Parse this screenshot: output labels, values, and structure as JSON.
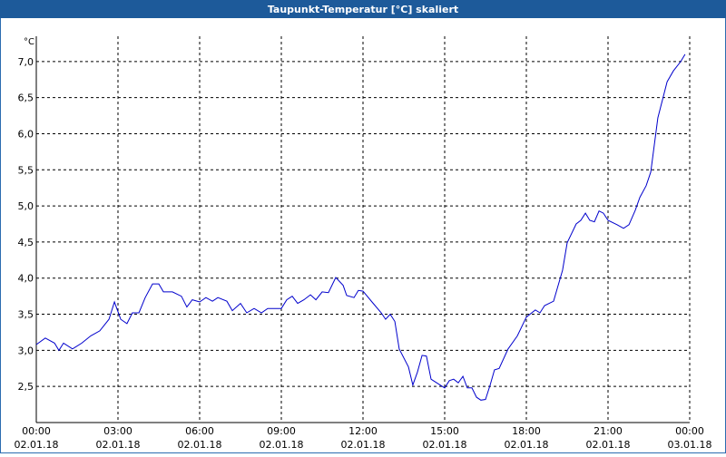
{
  "chart_data": {
    "type": "line",
    "title": "Taupunkt-Temperatur [°C] skaliert",
    "y_unit": "°C",
    "x": [
      0,
      0.33,
      0.67,
      0.83,
      1,
      1.33,
      1.67,
      2,
      2.33,
      2.67,
      2.87,
      3.1,
      3.33,
      3.53,
      3.77,
      4,
      4.27,
      4.5,
      4.67,
      5,
      5.33,
      5.53,
      5.73,
      6,
      6.23,
      6.47,
      6.67,
      7,
      7.2,
      7.5,
      7.73,
      8,
      8.27,
      8.5,
      9,
      9.2,
      9.4,
      9.6,
      9.83,
      10.07,
      10.27,
      10.5,
      10.73,
      11,
      11.27,
      11.4,
      11.67,
      11.83,
      12,
      12.33,
      12.67,
      12.83,
      13,
      13.17,
      13.33,
      13.67,
      13.83,
      14,
      14.17,
      14.33,
      14.5,
      14.83,
      15,
      15.17,
      15.33,
      15.5,
      15.67,
      15.83,
      16,
      16.17,
      16.33,
      16.5,
      16.67,
      16.83,
      17,
      17.33,
      17.67,
      18,
      18.33,
      18.5,
      18.67,
      19,
      19.33,
      19.5,
      19.83,
      20,
      20.17,
      20.33,
      20.5,
      20.67,
      20.83,
      21,
      21.33,
      21.57,
      21.77,
      22,
      22.17,
      22.4,
      22.57,
      22.83,
      23.17,
      23.4,
      23.67,
      23.83
    ],
    "series": [
      {
        "name": "Taupunkt-Temperatur",
        "color": "#0000cc",
        "values": [
          3.08,
          3.17,
          3.1,
          3.0,
          3.1,
          3.02,
          3.1,
          3.2,
          3.27,
          3.43,
          3.67,
          3.43,
          3.37,
          3.52,
          3.52,
          3.73,
          3.92,
          3.92,
          3.81,
          3.81,
          3.75,
          3.6,
          3.7,
          3.67,
          3.73,
          3.68,
          3.73,
          3.68,
          3.55,
          3.65,
          3.52,
          3.58,
          3.52,
          3.58,
          3.58,
          3.7,
          3.75,
          3.65,
          3.7,
          3.77,
          3.7,
          3.81,
          3.8,
          4.01,
          3.9,
          3.76,
          3.73,
          3.83,
          3.82,
          3.67,
          3.52,
          3.43,
          3.5,
          3.4,
          3.02,
          2.77,
          2.52,
          2.7,
          2.93,
          2.92,
          2.6,
          2.52,
          2.48,
          2.58,
          2.6,
          2.55,
          2.64,
          2.48,
          2.48,
          2.35,
          2.31,
          2.32,
          2.52,
          2.73,
          2.75,
          3.02,
          3.2,
          3.46,
          3.56,
          3.52,
          3.62,
          3.68,
          4.11,
          4.49,
          4.75,
          4.8,
          4.9,
          4.8,
          4.78,
          4.93,
          4.9,
          4.8,
          4.74,
          4.69,
          4.74,
          4.94,
          5.12,
          5.28,
          5.47,
          6.22,
          6.72,
          6.87,
          7.0,
          7.1
        ]
      }
    ],
    "xlim": [
      0,
      24
    ],
    "xticks": [
      {
        "value": 0,
        "label": "00:00"
      },
      {
        "value": 3,
        "label": "03:00"
      },
      {
        "value": 6,
        "label": "06:00"
      },
      {
        "value": 9,
        "label": "09:00"
      },
      {
        "value": 12,
        "label": "12:00"
      },
      {
        "value": 15,
        "label": "15:00"
      },
      {
        "value": 18,
        "label": "18:00"
      },
      {
        "value": 21,
        "label": "21:00"
      },
      {
        "value": 24,
        "label": "00:00"
      }
    ],
    "xtick_dates": [
      "02.01.18",
      "02.01.18",
      "02.01.18",
      "02.01.18",
      "02.01.18",
      "02.01.18",
      "02.01.18",
      "02.01.18",
      "03.01.18"
    ],
    "ylim": [
      2.0,
      7.35
    ],
    "yticks": [
      {
        "value": 2.5,
        "label": "2,5"
      },
      {
        "value": 3.0,
        "label": "3,0"
      },
      {
        "value": 3.5,
        "label": "3,5"
      },
      {
        "value": 4.0,
        "label": "4,0"
      },
      {
        "value": 4.5,
        "label": "4,5"
      },
      {
        "value": 5.0,
        "label": "5,0"
      },
      {
        "value": 5.5,
        "label": "5,5"
      },
      {
        "value": 6.0,
        "label": "6,0"
      },
      {
        "value": 6.5,
        "label": "6,5"
      },
      {
        "value": 7.0,
        "label": "7,0"
      }
    ],
    "grid": true
  }
}
